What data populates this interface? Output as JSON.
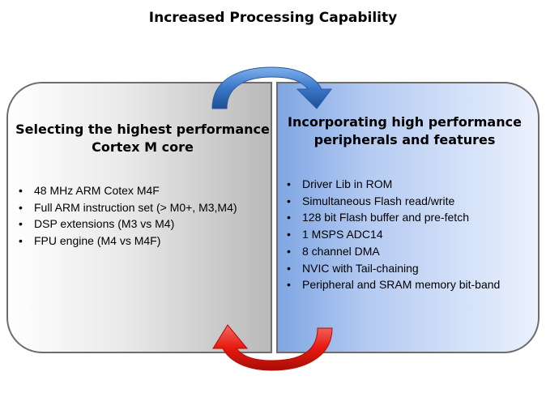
{
  "title": "Increased Processing Capability",
  "left_panel": {
    "heading": "Selecting the highest performance Cortex M core",
    "bullets": [
      "48 MHz ARM Cotex M4F",
      "Full ARM instruction set (> M0+, M3,M4)",
      "DSP extensions (M3 vs M4)",
      "FPU engine (M4 vs M4F)"
    ]
  },
  "right_panel": {
    "heading": "Incorporating high performance peripherals and features",
    "bullets": [
      "Driver Lib in ROM",
      "Simultaneous Flash read/write",
      "128 bit Flash buffer and pre-fetch",
      "1 MSPS ADC14",
      "8 channel DMA",
      "NVIC with Tail-chaining",
      "Peripheral and SRAM memory bit-band"
    ]
  },
  "colors": {
    "top_arrow": "#3b78c9",
    "bottom_arrow": "#e8190f"
  }
}
